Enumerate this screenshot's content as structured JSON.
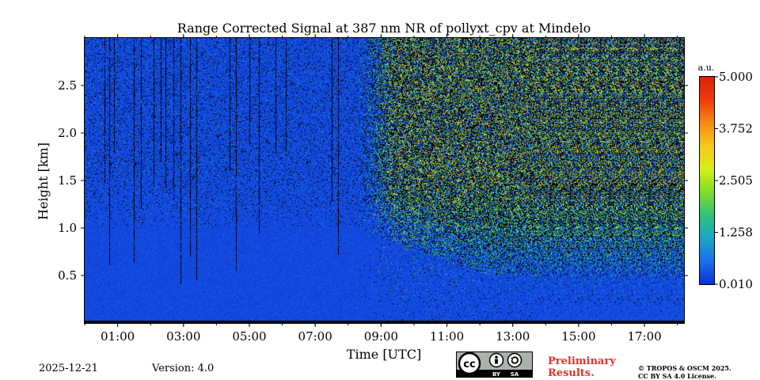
{
  "chart_data": {
    "type": "heatmap",
    "title": "Range Corrected Signal at 387 nm NR of pollyxt_cpv at Mindelo",
    "xlabel": "Time [UTC]",
    "ylabel": "Height [km]",
    "x_range_hours_utc": [
      0.0,
      18.2
    ],
    "xlim": [
      0.0,
      18.2
    ],
    "ylim": [
      0.0,
      3.0
    ],
    "xticks": [
      {
        "value": 1,
        "label": "01:00"
      },
      {
        "value": 3,
        "label": "03:00"
      },
      {
        "value": 5,
        "label": "05:00"
      },
      {
        "value": 7,
        "label": "07:00"
      },
      {
        "value": 9,
        "label": "09:00"
      },
      {
        "value": 11,
        "label": "11:00"
      },
      {
        "value": 13,
        "label": "13:00"
      },
      {
        "value": 15,
        "label": "15:00"
      },
      {
        "value": 17,
        "label": "17:00"
      }
    ],
    "yticks": [
      {
        "value": 0.5,
        "label": "0.5"
      },
      {
        "value": 1.0,
        "label": "1.0"
      },
      {
        "value": 1.5,
        "label": "1.5"
      },
      {
        "value": 2.0,
        "label": "2.0"
      },
      {
        "value": 2.5,
        "label": "2.5"
      }
    ],
    "colorbar": {
      "unit": "a.u.",
      "min": 0.01,
      "max": 5.0,
      "ticks": [
        "5.000",
        "3.752",
        "2.505",
        "1.258",
        "0.010"
      ],
      "colormap": [
        "#0b2fd6",
        "#1d6fe8",
        "#1aa6c8",
        "#2fc27a",
        "#7fdc2a",
        "#d8ee1a",
        "#f5c81a",
        "#f58a14",
        "#ee3a0c",
        "#d8200a"
      ]
    },
    "features": {
      "noise_transition_hour": 8.2,
      "boundary_layer_top_km_early": 1.0,
      "boundary_layer_top_km_late": 0.5,
      "night_noise_level": 0.3,
      "day_noise_level": 2.2,
      "cloud_streak_hours": [
        0.6,
        0.75,
        0.9,
        1.5,
        1.7,
        2.1,
        2.3,
        2.45,
        2.7,
        2.9,
        3.2,
        3.4,
        4.4,
        4.6,
        5.0,
        5.3,
        5.8,
        6.1,
        7.5,
        7.7
      ]
    }
  },
  "footer": {
    "date": "2025-12-21",
    "version": "Version: 4.0",
    "preliminary": [
      "Preliminary",
      "Results."
    ],
    "copyright": [
      "© TROPOS & OSCM 2025.",
      "CC BY SA 4.0 License."
    ],
    "license_badge": {
      "cc": "cc",
      "by": "BY",
      "sa": "SA"
    }
  }
}
